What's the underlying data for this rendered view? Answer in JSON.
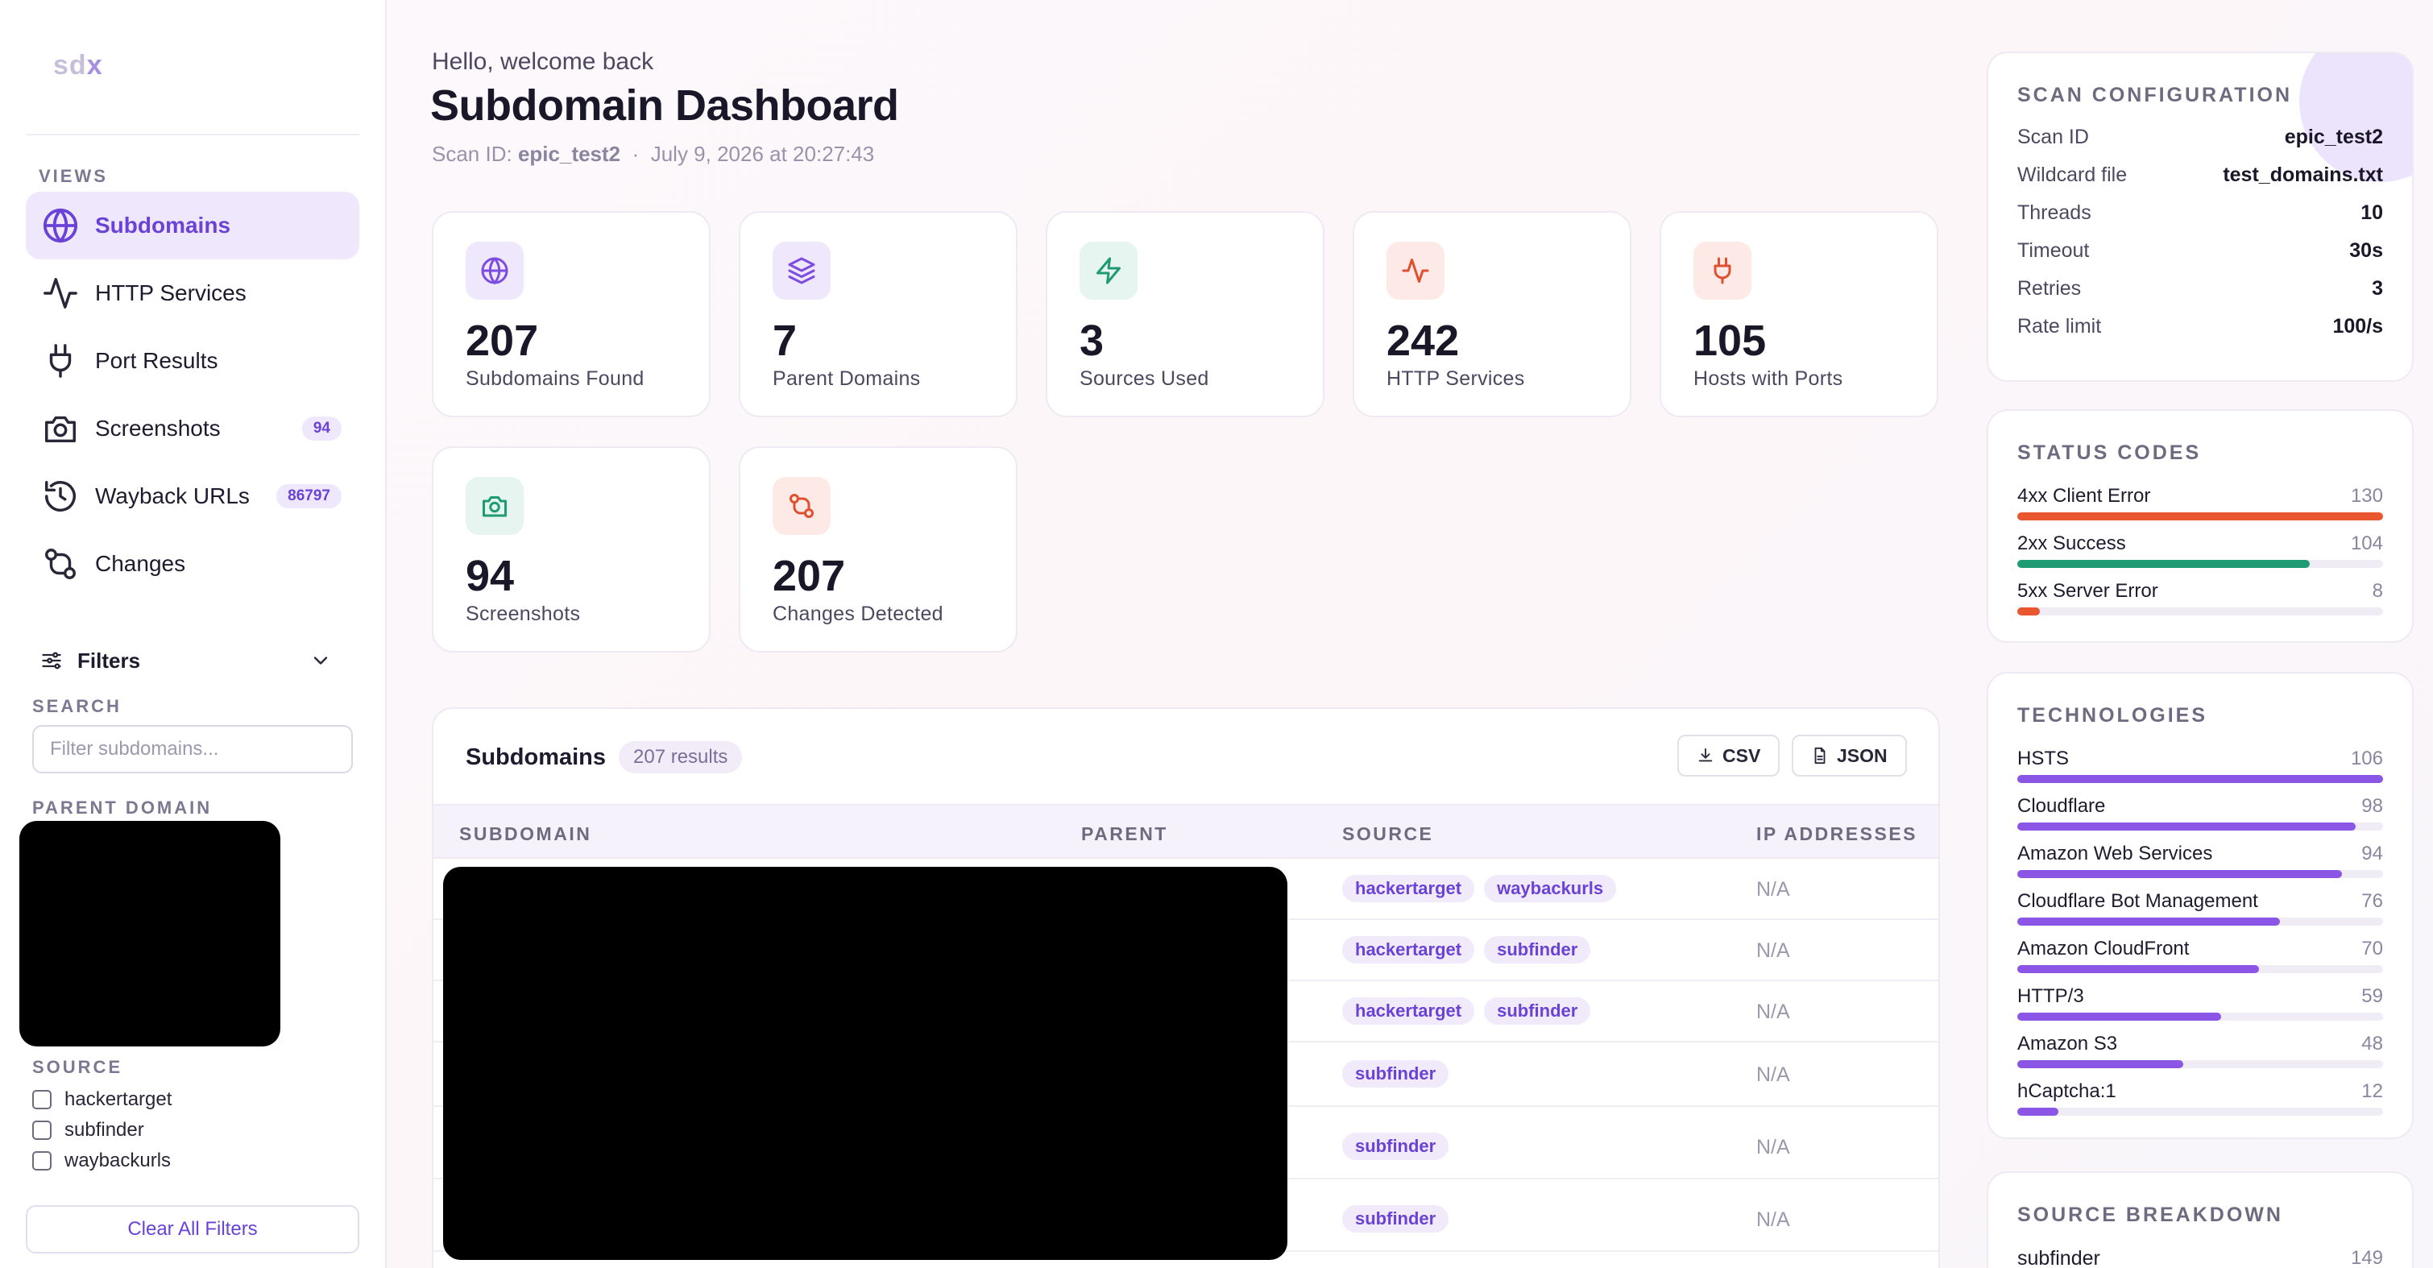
{
  "sidebar": {
    "logo": "sd",
    "logo_x": "x",
    "views_label": "VIEWS",
    "nav": [
      {
        "label": "Subdomains",
        "icon": "globe-icon",
        "active": true,
        "badge": ""
      },
      {
        "label": "HTTP Services",
        "icon": "activity-icon",
        "active": false,
        "badge": ""
      },
      {
        "label": "Port Results",
        "icon": "plug-icon",
        "active": false,
        "badge": ""
      },
      {
        "label": "Screenshots",
        "icon": "camera-icon",
        "active": false,
        "badge": "94"
      },
      {
        "label": "Wayback URLs",
        "icon": "history-icon",
        "active": false,
        "badge": "86797"
      },
      {
        "label": "Changes",
        "icon": "git-compare-icon",
        "active": false,
        "badge": ""
      }
    ],
    "filters_label": "Filters",
    "search_label": "SEARCH",
    "search_placeholder": "Filter subdomains...",
    "parent_domain_label": "PARENT DOMAIN",
    "source_label": "SOURCE",
    "sources": [
      "hackertarget",
      "subfinder",
      "waybackurls"
    ],
    "clear_label": "Clear All Filters"
  },
  "header": {
    "greeting": "Hello, welcome back",
    "title": "Subdomain Dashboard",
    "scan_prefix": "Scan ID:",
    "scan_id": "epic_test2",
    "separator": "·",
    "scan_time": "July 9, 2026 at 20:27:43"
  },
  "stats": [
    {
      "value": "207",
      "label": "Subdomains Found",
      "icon": "globe-icon",
      "color": "#7c4ddf",
      "bg": "#efe8fd"
    },
    {
      "value": "7",
      "label": "Parent Domains",
      "icon": "layers-icon",
      "color": "#7c4ddf",
      "bg": "#efe8fd"
    },
    {
      "value": "3",
      "label": "Sources Used",
      "icon": "zap-icon",
      "color": "#1f9b74",
      "bg": "#e6f5ef"
    },
    {
      "value": "242",
      "label": "HTTP Services",
      "icon": "activity-icon",
      "color": "#e0502f",
      "bg": "#fdeae6"
    },
    {
      "value": "105",
      "label": "Hosts with Ports",
      "icon": "plug-icon",
      "color": "#e0502f",
      "bg": "#fdeae6"
    },
    {
      "value": "94",
      "label": "Screenshots",
      "icon": "camera-icon",
      "color": "#1f9b74",
      "bg": "#e6f5ef"
    },
    {
      "value": "207",
      "label": "Changes Detected",
      "icon": "git-compare-icon",
      "color": "#e0502f",
      "bg": "#fdeae6"
    }
  ],
  "table": {
    "title": "Subdomains",
    "results": "207 results",
    "csv_label": "CSV",
    "json_label": "JSON",
    "columns": [
      "SUBDOMAIN",
      "PARENT",
      "SOURCE",
      "IP ADDRESSES"
    ],
    "rows": [
      {
        "sources": [
          "hackertarget",
          "waybackurls"
        ],
        "ip": "N/A"
      },
      {
        "sources": [
          "hackertarget",
          "subfinder"
        ],
        "ip": "N/A"
      },
      {
        "sources": [
          "hackertarget",
          "subfinder"
        ],
        "ip": "N/A"
      },
      {
        "sources": [
          "subfinder"
        ],
        "ip": "N/A"
      },
      {
        "sources": [
          "subfinder"
        ],
        "ip": "N/A"
      },
      {
        "sources": [
          "subfinder"
        ],
        "ip": "N/A"
      }
    ]
  },
  "scan_config": {
    "title": "SCAN CONFIGURATION",
    "items": [
      {
        "key": "Scan ID",
        "value": "epic_test2"
      },
      {
        "key": "Wildcard file",
        "value": "test_domains.txt"
      },
      {
        "key": "Threads",
        "value": "10"
      },
      {
        "key": "Timeout",
        "value": "30s"
      },
      {
        "key": "Retries",
        "value": "3"
      },
      {
        "key": "Rate limit",
        "value": "100/s"
      }
    ]
  },
  "status_codes": {
    "title": "STATUS CODES",
    "max": 130,
    "items": [
      {
        "label": "4xx Client Error",
        "value": 130,
        "color": "#e8572f"
      },
      {
        "label": "2xx Success",
        "value": 104,
        "color": "#1f9b74"
      },
      {
        "label": "5xx Server Error",
        "value": 8,
        "color": "#e8572f"
      }
    ]
  },
  "technologies": {
    "title": "TECHNOLOGIES",
    "max": 106,
    "color": "#8b55e6",
    "items": [
      {
        "label": "HSTS",
        "value": 106
      },
      {
        "label": "Cloudflare",
        "value": 98
      },
      {
        "label": "Amazon Web Services",
        "value": 94
      },
      {
        "label": "Cloudflare Bot Management",
        "value": 76
      },
      {
        "label": "Amazon CloudFront",
        "value": 70
      },
      {
        "label": "HTTP/3",
        "value": 59
      },
      {
        "label": "Amazon S3",
        "value": 48
      },
      {
        "label": "hCaptcha:1",
        "value": 12
      }
    ]
  },
  "source_breakdown": {
    "title": "SOURCE BREAKDOWN",
    "items": [
      {
        "label": "subfinder",
        "value": "149"
      }
    ]
  }
}
